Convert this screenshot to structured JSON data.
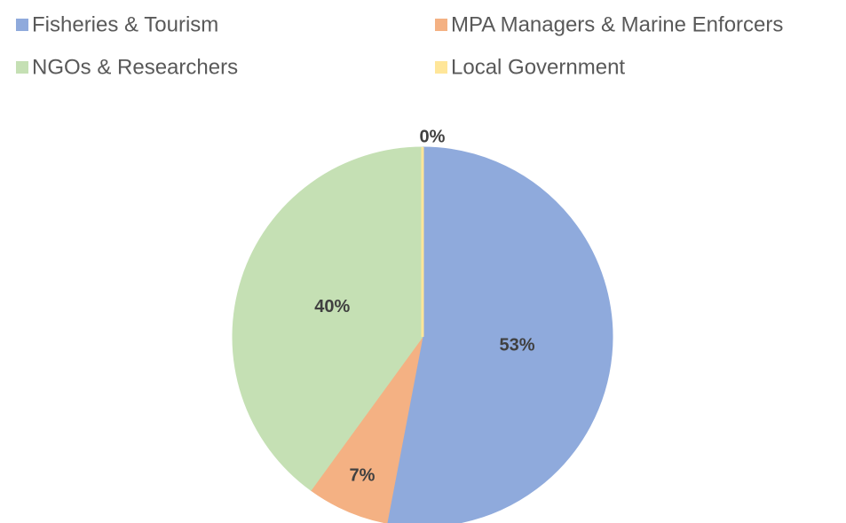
{
  "chart_data": {
    "type": "pie",
    "categories": [
      "Fisheries & Tourism",
      "MPA Managers & Marine Enforcers",
      "NGOs & Researchers",
      "Local Government"
    ],
    "values": [
      53,
      7,
      40,
      0
    ],
    "value_labels": [
      "53%",
      "7%",
      "40%",
      "0%"
    ],
    "colors": [
      "#8faadc",
      "#f4b183",
      "#c5e0b4",
      "#ffe699"
    ],
    "legend": "top"
  }
}
